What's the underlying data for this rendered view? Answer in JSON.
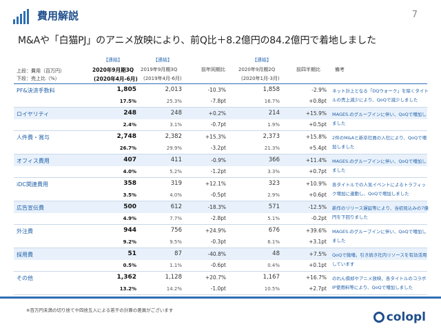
{
  "header": {
    "title": "費用解説",
    "page": "7"
  },
  "subtitle": "M&Aや「白猫PJ」のアニメ放映により、前Q比＋8.2億円の84.2億円で着地しました",
  "columns": {
    "label_top": "上段：費用（百万円）",
    "label_bottom": "下段：売上比（%）",
    "cur_tag": "【連結】",
    "cur_period": "2020年9月期3Q",
    "cur_range": "(2020年4月-6月)",
    "prev_tag": "【連結】",
    "prev_period": "2019年9月期3Q",
    "prev_range": "(2019年4月-6月)",
    "yoy": "前年同期比",
    "q2_tag": "【連結】",
    "q2_period": "2020年9月期2Q",
    "q2_range": "(2020年1月-3月)",
    "qoq": "前四半期比",
    "note": "備考"
  },
  "rows": [
    {
      "name": "PF&決済手数料",
      "cur": "1,805",
      "cur_r": "17.5%",
      "prev": "2,013",
      "prev_r": "25.3%",
      "yoy": "-10.3%",
      "yoy_r": "-7.8pt",
      "q2": "1,858",
      "q2_r": "16.7%",
      "qoq": "-2.9%",
      "qoq_r": "+0.8pt",
      "note": "ネット計上となる「DQウォーク」を除くタイトルの売上減少により、QoQで減少しました"
    },
    {
      "name": "ロイヤリティ",
      "cur": "248",
      "cur_r": "2.4%",
      "prev": "248",
      "prev_r": "3.1%",
      "yoy": "+0.2%",
      "yoy_r": "-0.7pt",
      "q2": "214",
      "q2_r": "1.9%",
      "qoq": "+15.9%",
      "qoq_r": "+0.5pt",
      "note": "MAGES.のグループインに伴い、QoQで増加しました"
    },
    {
      "name": "人件費・賞与",
      "cur": "2,748",
      "cur_r": "26.7%",
      "prev": "2,382",
      "prev_r": "29.9%",
      "yoy": "+15.3%",
      "yoy_r": "-3.2pt",
      "q2": "2,373",
      "q2_r": "21.3%",
      "qoq": "+15.8%",
      "qoq_r": "+5.4pt",
      "note": "2件のM&Aと新卒社員の入社により、QoQで増加しました"
    },
    {
      "name": "オフィス費用",
      "cur": "407",
      "cur_r": "4.0%",
      "prev": "411",
      "prev_r": "5.2%",
      "yoy": "-0.9%",
      "yoy_r": "-1.2pt",
      "q2": "366",
      "q2_r": "3.3%",
      "qoq": "+11.4%",
      "qoq_r": "+0.7pt",
      "note": "MAGES.のグループインに伴い、QoQで増加しました"
    },
    {
      "name": "iDC関連費用",
      "cur": "358",
      "cur_r": "3.5%",
      "prev": "319",
      "prev_r": "4.0%",
      "yoy": "+12.1%",
      "yoy_r": "-0.5pt",
      "q2": "323",
      "q2_r": "2.9%",
      "qoq": "+10.9%",
      "qoq_r": "+0.6pt",
      "note": "各タイトルでの人気イベントによるトラフィック増加に連動し、QoQで増加しました"
    },
    {
      "name": "広告宣伝費",
      "cur": "500",
      "cur_r": "4.9%",
      "prev": "612",
      "prev_r": "7.7%",
      "yoy": "-18.3%",
      "yoy_r": "-2.8pt",
      "q2": "571",
      "q2_r": "5.1%",
      "qoq": "-12.5%",
      "qoq_r": "-0.2pt",
      "note": "新作のリリース遅延等により、当初見込みの7億円を下回りました"
    },
    {
      "name": "外注費",
      "cur": "944",
      "cur_r": "9.2%",
      "prev": "756",
      "prev_r": "9.5%",
      "yoy": "+24.9%",
      "yoy_r": "-0.3pt",
      "q2": "676",
      "q2_r": "6.1%",
      "qoq": "+39.6%",
      "qoq_r": "+3.1pt",
      "note": "MAGES.のグループインに伴い、QoQで増加しました"
    },
    {
      "name": "採用費",
      "cur": "51",
      "cur_r": "0.5%",
      "prev": "87",
      "prev_r": "1.1%",
      "yoy": "-40.8%",
      "yoy_r": "-0.6pt",
      "q2": "48",
      "q2_r": "0.4%",
      "qoq": "+7.5%",
      "qoq_r": "+0.1pt",
      "note": "QoQで微増。引き続き社内リソースを有効活用しています"
    },
    {
      "name": "その他",
      "cur": "1,362",
      "cur_r": "13.2%",
      "prev": "1,128",
      "prev_r": "14.2%",
      "yoy": "+20.7%",
      "yoy_r": "-1.0pt",
      "q2": "1,167",
      "q2_r": "10.5%",
      "qoq": "+16.7%",
      "qoq_r": "+2.7pt",
      "note": "のれん償却やアニメ放映、各タイトルのコラボIP使用料等により、QoQで増加しました"
    }
  ],
  "footnote": "※百万円未満の切り捨てや四捨五入による若干の計算の差異がございます",
  "logo": "colopl"
}
